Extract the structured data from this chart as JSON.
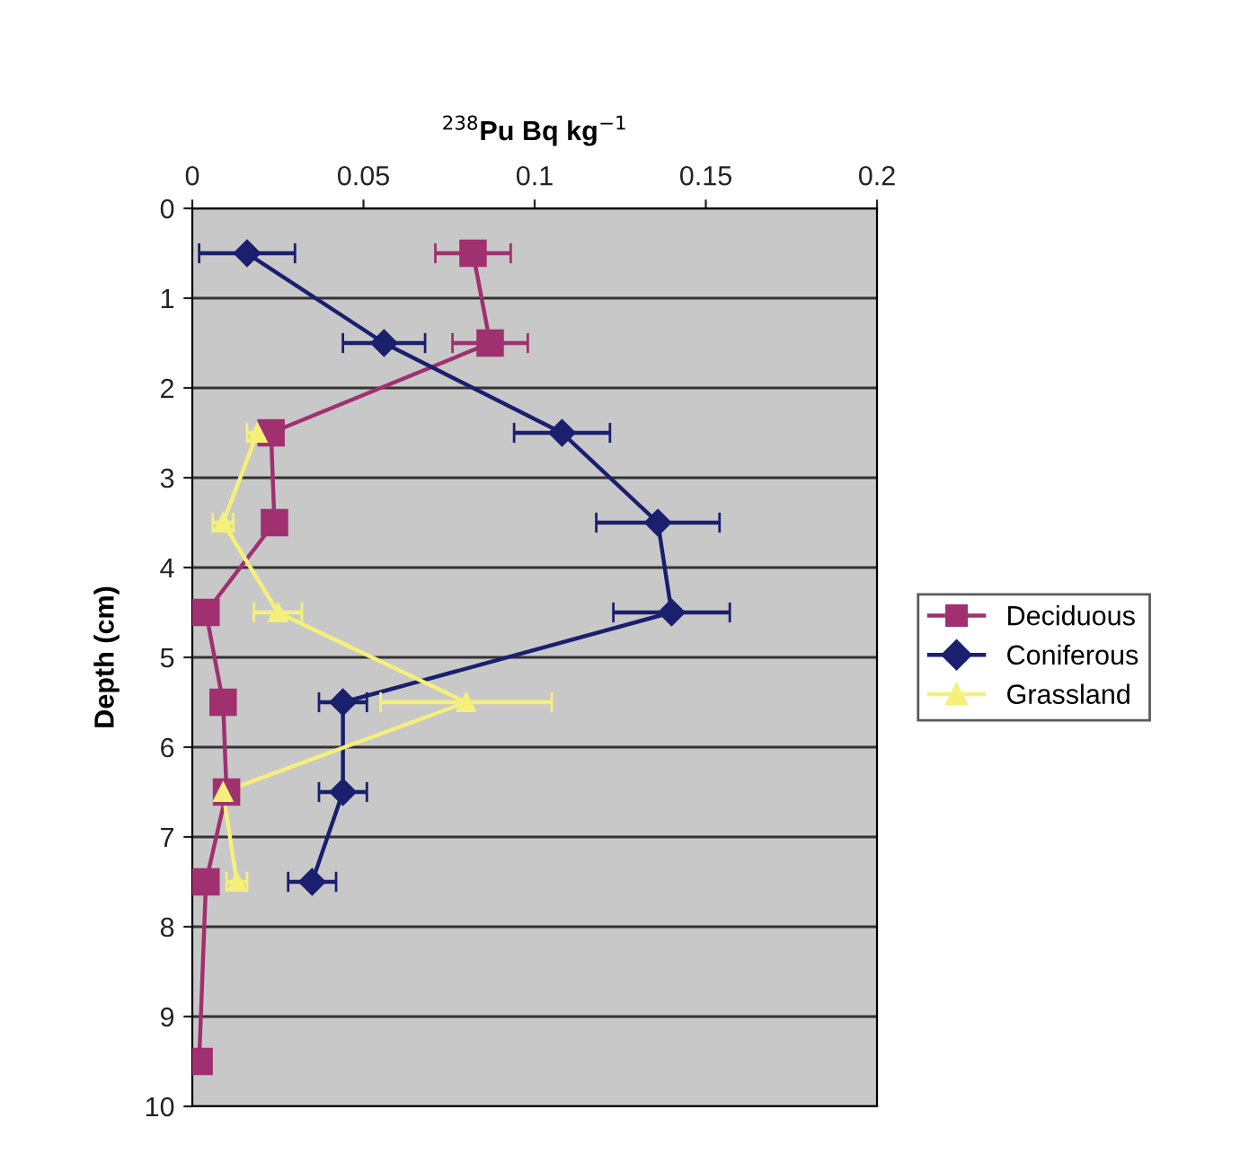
{
  "chart_data": {
    "type": "line",
    "orientation": "horizontal",
    "xlabel": "$^{238}$Pu Bq kg$^{−1}$",
    "ylabel": "Depth (cm)",
    "xlim": [
      0,
      0.2
    ],
    "xticks": [
      0,
      0.05,
      0.1,
      0.15,
      0.2
    ],
    "ylim": [
      10,
      0
    ],
    "yticks": [
      0,
      1,
      2,
      3,
      4,
      5,
      6,
      7,
      8,
      9,
      10
    ],
    "grid": "y",
    "legend": "right",
    "line_style": "solid",
    "series": [
      {
        "name": "Deciduous",
        "color": "#a03070",
        "marker": "square",
        "x": [
          0.5,
          1.5,
          2.5,
          3.5,
          4.5,
          5.5,
          6.5,
          7.5,
          9.5
        ],
        "values": [
          0.082,
          0.087,
          0.023,
          0.024,
          0.004,
          0.009,
          0.01,
          0.004,
          0.002
        ],
        "errors": [
          0.011,
          0.011,
          null,
          null,
          null,
          null,
          null,
          null,
          null
        ]
      },
      {
        "name": "Coniferous",
        "color": "#1a1f6e",
        "marker": "diamond",
        "x": [
          0.5,
          1.5,
          2.5,
          3.5,
          4.5,
          5.5,
          6.5,
          7.5
        ],
        "values": [
          0.016,
          0.056,
          0.108,
          0.136,
          0.14,
          0.044,
          0.044,
          0.035
        ],
        "errors": [
          0.014,
          0.012,
          0.014,
          0.018,
          0.017,
          0.007,
          0.007,
          0.007
        ]
      },
      {
        "name": "Grassland",
        "color": "#f5f07a",
        "marker": "triangle",
        "x": [
          2.5,
          3.5,
          4.5,
          5.5,
          6.5,
          7.5
        ],
        "values": [
          0.019,
          0.009,
          0.025,
          0.08,
          0.009,
          0.013
        ],
        "errors": [
          0.003,
          0.003,
          0.007,
          0.025,
          null,
          0.003
        ]
      }
    ]
  }
}
